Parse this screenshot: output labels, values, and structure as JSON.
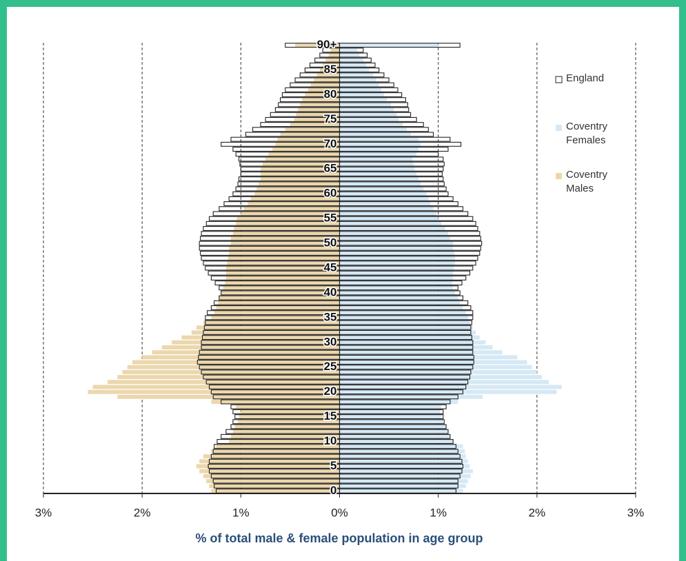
{
  "chart_data": {
    "type": "population-pyramid",
    "xlabel": "% of total male & female population in age group",
    "categories": [
      "0",
      null,
      null,
      null,
      null,
      "5",
      null,
      null,
      null,
      null,
      "10",
      null,
      null,
      null,
      null,
      "15",
      null,
      null,
      null,
      null,
      "20",
      null,
      null,
      null,
      null,
      "25",
      null,
      null,
      null,
      null,
      "30",
      null,
      null,
      null,
      null,
      "35",
      null,
      null,
      null,
      null,
      "40",
      null,
      null,
      null,
      null,
      "45",
      null,
      null,
      null,
      null,
      "50",
      null,
      null,
      null,
      null,
      "55",
      null,
      null,
      null,
      null,
      "60",
      null,
      null,
      null,
      null,
      "65",
      null,
      null,
      null,
      null,
      "70",
      null,
      null,
      null,
      null,
      "75",
      null,
      null,
      null,
      null,
      "80",
      null,
      null,
      null,
      null,
      "85",
      null,
      null,
      null,
      null,
      "90+"
    ],
    "xlim": [
      -3,
      3
    ],
    "xticks": [
      {
        "value": -3,
        "label": "3%"
      },
      {
        "value": -2,
        "label": "2%"
      },
      {
        "value": -1,
        "label": "1%"
      },
      {
        "value": 0,
        "label": "0%"
      },
      {
        "value": 1,
        "label": "1%"
      },
      {
        "value": 2,
        "label": "2%"
      },
      {
        "value": 3,
        "label": "3%"
      }
    ],
    "grid": true,
    "series": [
      {
        "name": "England",
        "color": "#222222",
        "males": [
          -1.25,
          -1.27,
          -1.28,
          -1.3,
          -1.32,
          -1.33,
          -1.32,
          -1.3,
          -1.28,
          -1.27,
          -1.24,
          -1.2,
          -1.15,
          -1.1,
          -1.08,
          -1.06,
          -1.08,
          -1.1,
          -1.2,
          -1.28,
          -1.3,
          -1.32,
          -1.35,
          -1.38,
          -1.4,
          -1.42,
          -1.44,
          -1.43,
          -1.42,
          -1.4,
          -1.4,
          -1.39,
          -1.38,
          -1.37,
          -1.36,
          -1.36,
          -1.34,
          -1.3,
          -1.27,
          -1.22,
          -1.2,
          -1.22,
          -1.26,
          -1.3,
          -1.33,
          -1.36,
          -1.38,
          -1.4,
          -1.41,
          -1.42,
          -1.42,
          -1.41,
          -1.4,
          -1.38,
          -1.35,
          -1.32,
          -1.28,
          -1.22,
          -1.17,
          -1.12,
          -1.08,
          -1.05,
          -1.03,
          -1.02,
          -1.0,
          -1.0,
          -1.01,
          -1.02,
          -1.05,
          -1.08,
          -1.2,
          -1.1,
          -0.95,
          -0.88,
          -0.8,
          -0.75,
          -0.7,
          -0.65,
          -0.62,
          -0.6,
          -0.58,
          -0.55,
          -0.5,
          -0.45,
          -0.4,
          -0.35,
          -0.3,
          -0.25,
          -0.2,
          -0.17,
          -0.55
        ],
        "females": [
          1.18,
          1.2,
          1.2,
          1.22,
          1.24,
          1.25,
          1.24,
          1.22,
          1.2,
          1.18,
          1.15,
          1.12,
          1.1,
          1.08,
          1.06,
          1.05,
          1.05,
          1.08,
          1.12,
          1.2,
          1.25,
          1.28,
          1.3,
          1.32,
          1.33,
          1.35,
          1.36,
          1.36,
          1.35,
          1.35,
          1.35,
          1.34,
          1.33,
          1.33,
          1.34,
          1.35,
          1.35,
          1.33,
          1.3,
          1.25,
          1.22,
          1.2,
          1.24,
          1.28,
          1.32,
          1.35,
          1.38,
          1.4,
          1.42,
          1.43,
          1.44,
          1.43,
          1.42,
          1.4,
          1.38,
          1.35,
          1.3,
          1.25,
          1.2,
          1.15,
          1.1,
          1.08,
          1.06,
          1.05,
          1.04,
          1.05,
          1.06,
          1.05,
          1.0,
          1.1,
          1.23,
          1.12,
          0.95,
          0.9,
          0.85,
          0.78,
          0.72,
          0.7,
          0.69,
          0.67,
          0.63,
          0.59,
          0.55,
          0.5,
          0.45,
          0.4,
          0.36,
          0.32,
          0.28,
          0.24,
          1.22
        ]
      },
      {
        "name": "Coventry Females",
        "color": "#d5e8f5",
        "values": [
          1.25,
          1.28,
          1.3,
          1.33,
          1.35,
          1.32,
          1.3,
          1.28,
          1.27,
          1.25,
          1.15,
          1.12,
          1.1,
          1.08,
          1.05,
          1.03,
          1.02,
          1.03,
          1.2,
          1.45,
          2.2,
          2.25,
          2.12,
          2.05,
          2.0,
          1.95,
          1.9,
          1.8,
          1.65,
          1.55,
          1.48,
          1.42,
          1.38,
          1.35,
          1.32,
          1.3,
          1.28,
          1.25,
          1.22,
          1.2,
          1.17,
          1.15,
          1.14,
          1.15,
          1.15,
          1.16,
          1.17,
          1.17,
          1.16,
          1.15,
          1.15,
          1.12,
          1.1,
          1.07,
          1.03,
          1.0,
          0.98,
          0.95,
          0.92,
          0.9,
          0.88,
          0.85,
          0.82,
          0.8,
          0.78,
          0.76,
          0.75,
          0.74,
          0.78,
          0.8,
          0.82,
          0.8,
          0.72,
          0.68,
          0.64,
          0.6,
          0.58,
          0.55,
          0.52,
          0.48,
          0.45,
          0.42,
          0.4,
          0.37,
          0.34,
          0.3,
          0.27,
          0.24,
          0.2,
          0.18,
          1.0
        ]
      },
      {
        "name": "Coventry Males",
        "color": "#ecd7ad",
        "values": [
          -1.3,
          -1.32,
          -1.35,
          -1.38,
          -1.42,
          -1.45,
          -1.42,
          -1.38,
          -1.3,
          -1.25,
          -1.12,
          -1.1,
          -1.08,
          -1.06,
          -1.03,
          -1.02,
          -1.0,
          -1.05,
          -1.3,
          -2.25,
          -2.55,
          -2.5,
          -2.35,
          -2.25,
          -2.2,
          -2.15,
          -2.1,
          -2.0,
          -1.9,
          -1.8,
          -1.7,
          -1.6,
          -1.5,
          -1.45,
          -1.38,
          -1.3,
          -1.27,
          -1.25,
          -1.23,
          -1.22,
          -1.2,
          -1.18,
          -1.16,
          -1.15,
          -1.15,
          -1.15,
          -1.14,
          -1.13,
          -1.12,
          -1.12,
          -1.1,
          -1.1,
          -1.08,
          -1.07,
          -1.05,
          -1.04,
          -1.0,
          -0.97,
          -0.93,
          -0.9,
          -0.86,
          -0.84,
          -0.82,
          -0.8,
          -0.8,
          -0.8,
          -0.78,
          -0.75,
          -0.72,
          -0.68,
          -0.65,
          -0.63,
          -0.6,
          -0.55,
          -0.5,
          -0.46,
          -0.44,
          -0.42,
          -0.4,
          -0.38,
          -0.35,
          -0.32,
          -0.29,
          -0.26,
          -0.23,
          -0.2,
          -0.17,
          -0.14,
          -0.11,
          -0.09,
          -0.45
        ]
      }
    ]
  }
}
